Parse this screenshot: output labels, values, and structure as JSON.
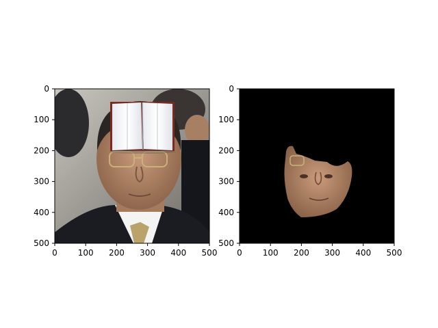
{
  "panels": [
    {
      "id": "original",
      "content": "photo of an older man in glasses, suit and tie, with a book image pasted over his forehead",
      "x_ticks": [
        "0",
        "100",
        "200",
        "300",
        "400",
        "500"
      ],
      "y_ticks": [
        "0",
        "100",
        "200",
        "300",
        "400",
        "500"
      ]
    },
    {
      "id": "masked",
      "content": "same face segmented onto a black background",
      "background": "#000000",
      "x_ticks": [
        "0",
        "100",
        "200",
        "300",
        "400",
        "500"
      ],
      "y_ticks": [
        "0",
        "100",
        "200",
        "300",
        "400",
        "500"
      ]
    }
  ],
  "colors": {
    "skin": "#b98a6a",
    "suit": "#1b1c22",
    "book_page": "#eef0f4",
    "book_cover": "#7a2a22"
  }
}
